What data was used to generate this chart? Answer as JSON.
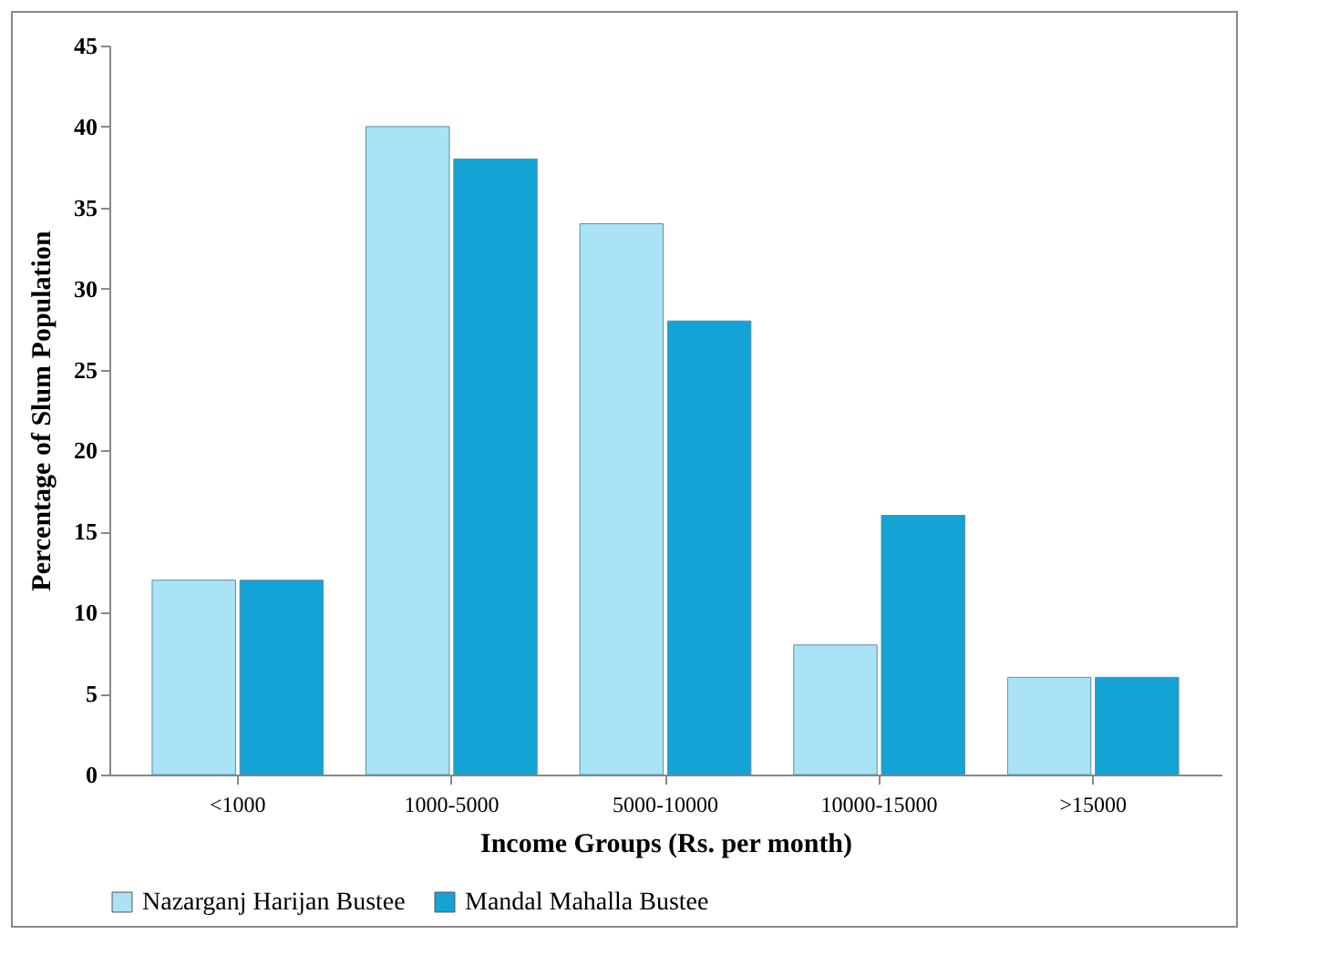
{
  "chart_data": {
    "type": "bar",
    "xlabel": "Income Groups (Rs. per month)",
    "ylabel": "Percentage of Slum Population",
    "categories": [
      "<1000",
      "1000-5000",
      "5000-10000",
      "10000-15000",
      ">15000"
    ],
    "series": [
      {
        "name": "Nazarganj Harijan Bustee",
        "color": "#a9e3f5",
        "values": [
          12,
          40,
          34,
          8,
          6
        ]
      },
      {
        "name": "Mandal Mahalla Bustee",
        "color": "#13a3d4",
        "values": [
          12,
          38,
          28,
          16,
          6
        ]
      }
    ],
    "ylim": [
      0,
      45
    ],
    "yticks": [
      0,
      5,
      10,
      15,
      20,
      25,
      30,
      35,
      40,
      45
    ],
    "grid": false,
    "legend": "bottom"
  }
}
